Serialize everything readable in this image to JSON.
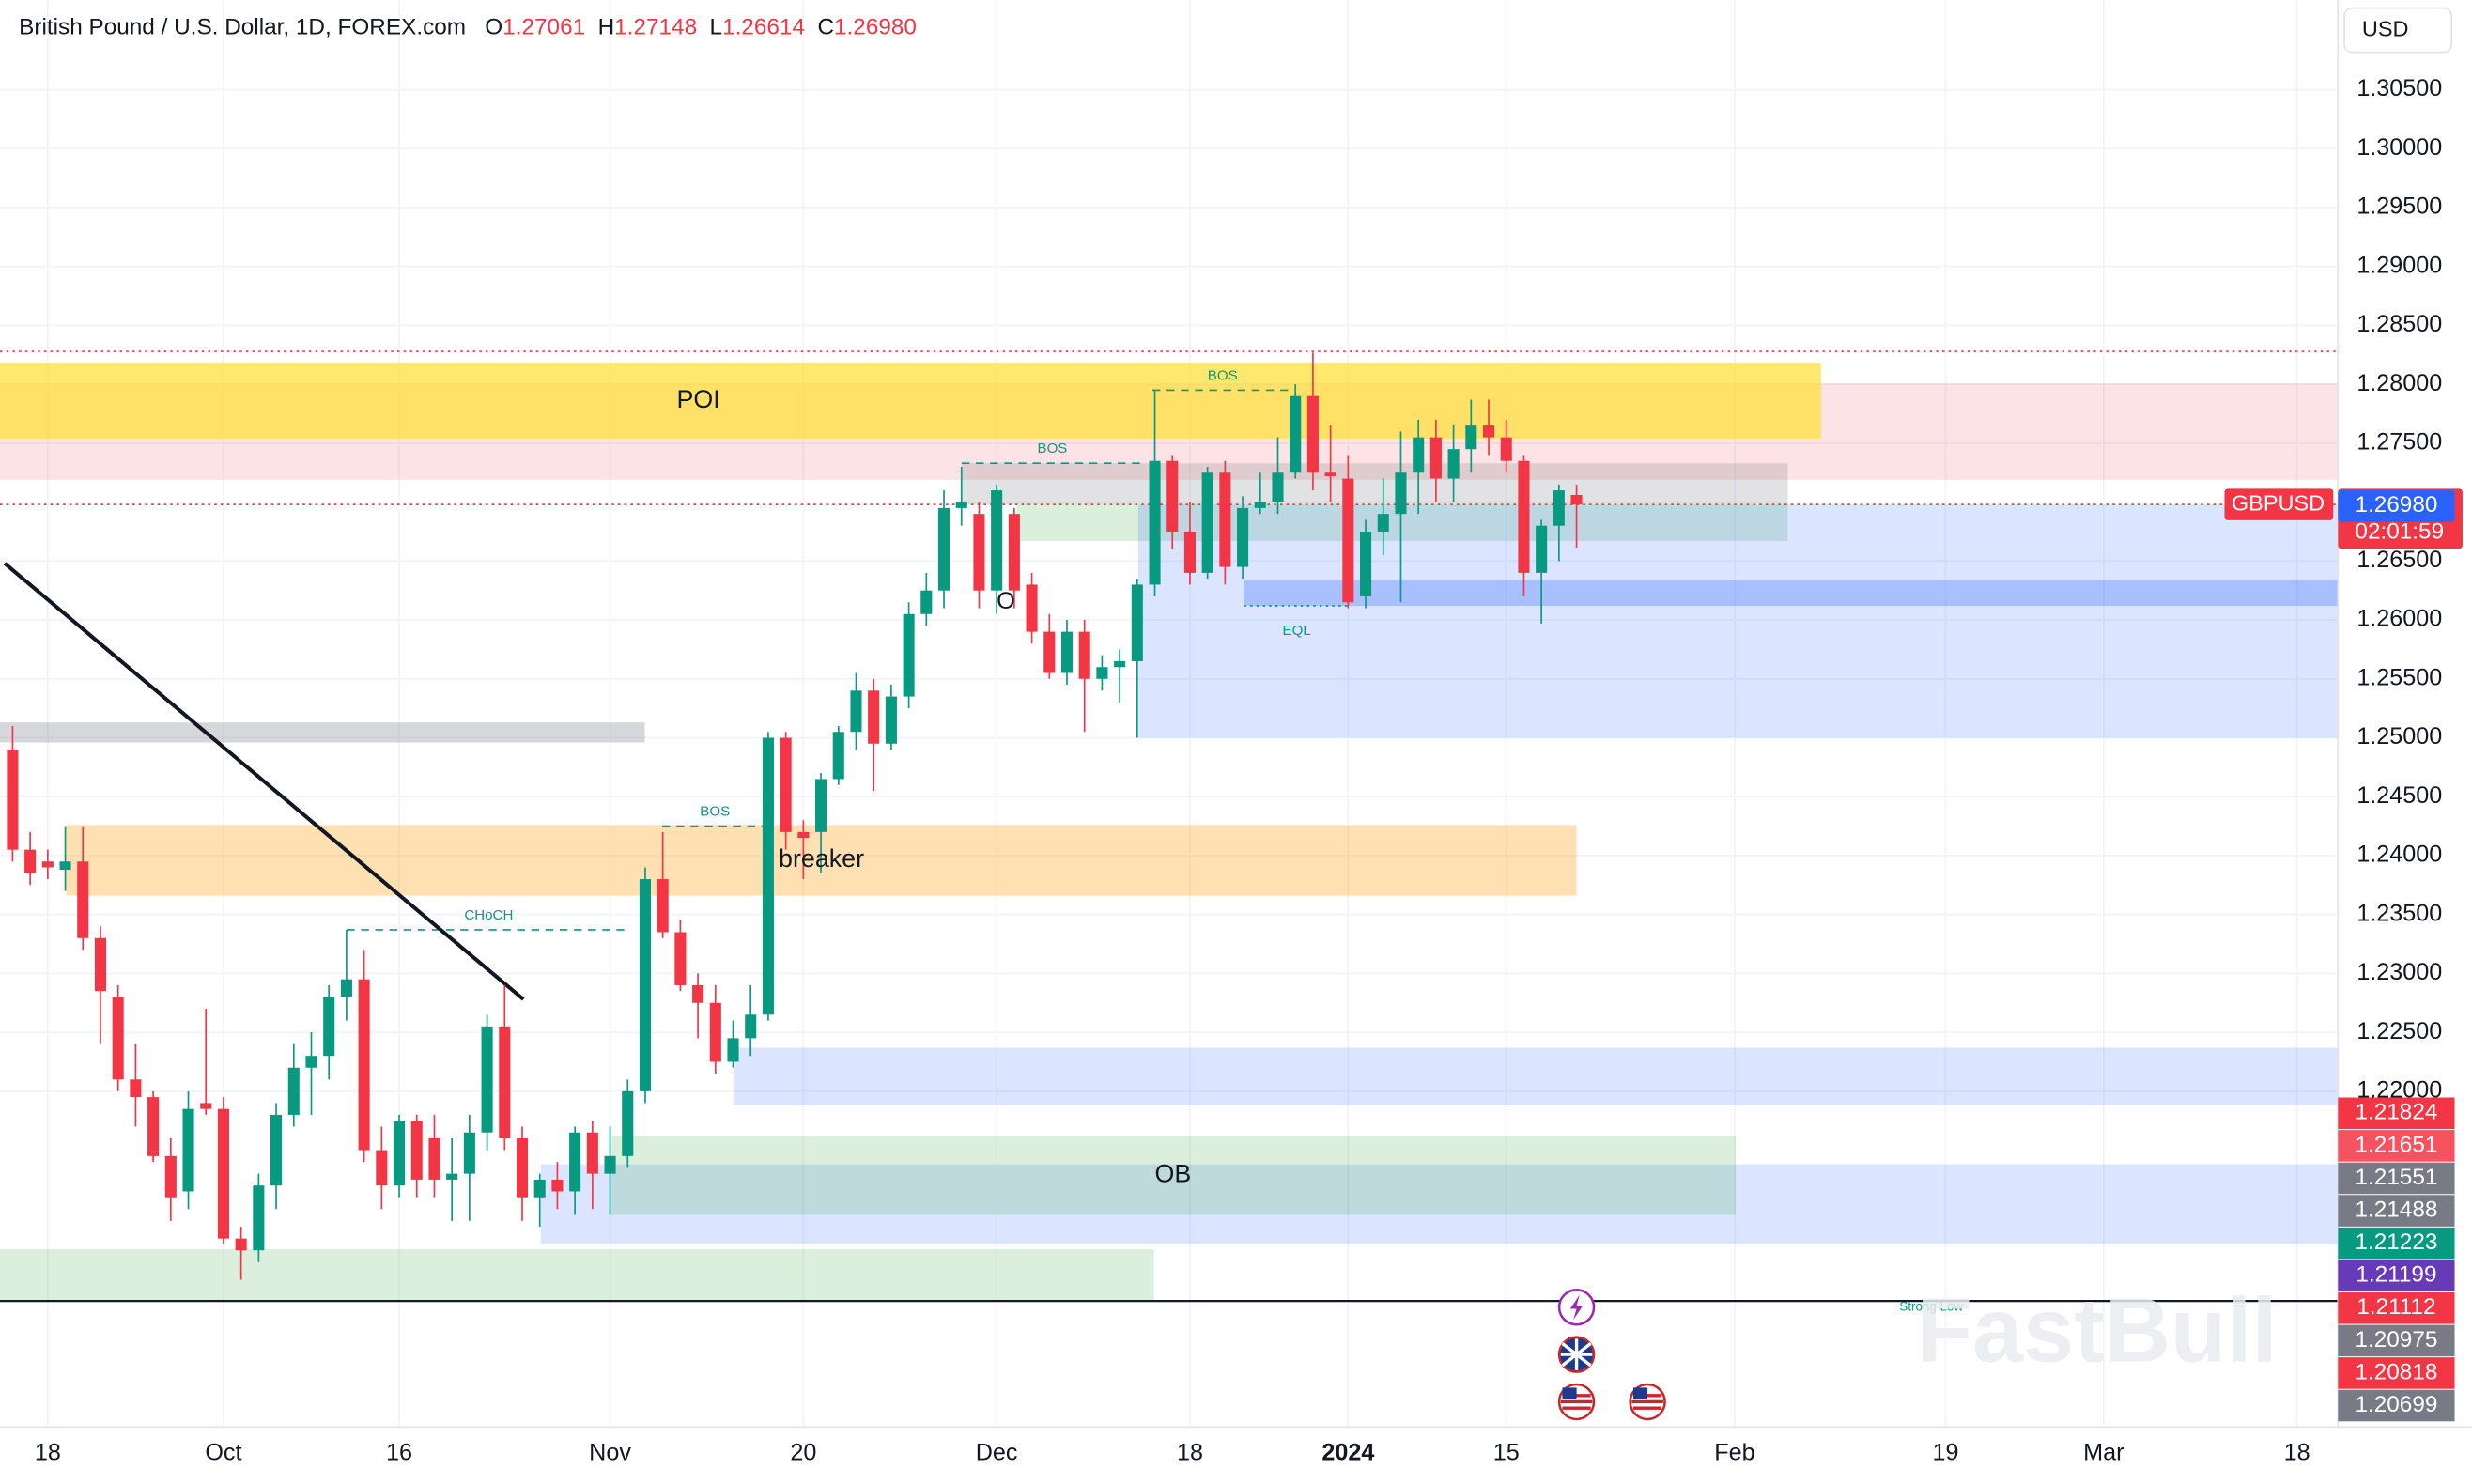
{
  "chart_data": {
    "type": "candlestick",
    "title": "British Pound / U.S. Dollar, 1D, FOREX.com",
    "ohlc_header": [
      {
        "key": "O",
        "value": "1.27061"
      },
      {
        "key": "H",
        "value": "1.27148"
      },
      {
        "key": "L",
        "value": "1.26614"
      },
      {
        "key": "C",
        "value": "1.26980"
      }
    ],
    "currency": "USD",
    "categories": [
      null,
      null,
      "18",
      null,
      null,
      null,
      null,
      null,
      null,
      null,
      null,
      null,
      "Oct",
      null,
      null,
      null,
      null,
      null,
      null,
      null,
      null,
      null,
      "16",
      null,
      null,
      null,
      null,
      null,
      null,
      null,
      null,
      null,
      null,
      null,
      "Nov",
      null,
      null,
      null,
      null,
      null,
      null,
      null,
      null,
      null,
      null,
      "20",
      null,
      null,
      null,
      null,
      null,
      null,
      null,
      null,
      null,
      null,
      "Dec",
      null,
      null,
      null,
      null,
      null,
      null,
      null,
      null,
      null,
      null,
      "18",
      null,
      null,
      null,
      null,
      null,
      null,
      null,
      null,
      "2024",
      null,
      null,
      null,
      null,
      null,
      null,
      null,
      null,
      "15",
      null,
      null,
      null,
      null,
      null,
      null,
      null,
      null,
      null,
      null,
      null,
      null,
      "Feb",
      null,
      null,
      null,
      null,
      null,
      null,
      null,
      null,
      null,
      null,
      null,
      "19",
      null,
      null,
      null,
      null,
      null,
      null,
      null,
      null,
      "Mar",
      null,
      null,
      null,
      null,
      null,
      null,
      null,
      null,
      null,
      null,
      "18"
    ],
    "open": [
      1.249,
      1.2405,
      1.2395,
      1.2388,
      1.2395,
      1.233,
      1.228,
      1.221,
      1.2195,
      1.2145,
      1.2115,
      1.219,
      1.2185,
      1.2075,
      1.2065,
      1.212,
      1.218,
      1.222,
      1.223,
      1.228,
      1.2295,
      1.215,
      1.212,
      1.2175,
      1.216,
      1.2125,
      1.213,
      1.2165,
      1.2255,
      1.216,
      1.211,
      1.2125,
      1.2115,
      1.2165,
      1.213,
      1.2145,
      1.22,
      1.238,
      1.2335,
      1.229,
      1.2275,
      1.2225,
      1.2245,
      1.2265,
      1.25,
      1.242,
      1.242,
      1.2465,
      1.2505,
      1.254,
      1.2495,
      1.2535,
      1.2605,
      1.2625,
      1.2695,
      1.269,
      1.2625,
      1.269,
      1.263,
      1.259,
      1.2555,
      1.259,
      1.255,
      1.256,
      1.2565,
      1.263,
      1.2735,
      1.2675,
      1.264,
      1.2725,
      1.2645,
      1.2695,
      1.27,
      1.2725,
      1.279,
      1.2725,
      1.272,
      1.262,
      1.2675,
      1.269,
      1.2725,
      1.2755,
      1.272,
      1.2745,
      1.2765,
      1.2755,
      1.2735,
      1.264,
      1.268,
      1.27061,
      null,
      null,
      null,
      null,
      null,
      null,
      null,
      null,
      null,
      null,
      null,
      null,
      null,
      null,
      null,
      null,
      null,
      null,
      null,
      null,
      null,
      null,
      null,
      null,
      null,
      null,
      null,
      null,
      null,
      null,
      null,
      null,
      null,
      null,
      null,
      null,
      null,
      null,
      null,
      null,
      null
    ],
    "high": [
      1.251,
      1.242,
      1.2405,
      1.2425,
      1.2425,
      1.234,
      1.229,
      1.224,
      1.22,
      1.216,
      1.22,
      1.227,
      1.2195,
      1.2085,
      1.213,
      1.219,
      1.224,
      1.225,
      1.229,
      1.2337,
      1.232,
      1.217,
      1.218,
      1.218,
      1.218,
      1.216,
      1.218,
      1.2265,
      1.229,
      1.217,
      1.213,
      1.214,
      1.217,
      1.2175,
      1.217,
      1.221,
      1.239,
      1.242,
      1.2345,
      1.23,
      1.229,
      1.226,
      1.229,
      1.2505,
      1.2505,
      1.243,
      1.247,
      1.251,
      1.2555,
      1.255,
      1.2545,
      1.2615,
      1.264,
      1.271,
      1.273,
      1.27,
      1.2715,
      1.2695,
      1.264,
      1.2605,
      1.26,
      1.26,
      1.257,
      1.2575,
      1.2635,
      1.2795,
      1.274,
      1.27,
      1.273,
      1.2735,
      1.2705,
      1.2725,
      1.2755,
      1.28,
      1.2827,
      1.2765,
      1.274,
      1.2685,
      1.272,
      1.276,
      1.277,
      1.277,
      1.2765,
      1.2787,
      1.2787,
      1.277,
      1.274,
      1.2685,
      1.2715,
      1.27148,
      null,
      null,
      null,
      null,
      null,
      null,
      null,
      null,
      null,
      null,
      null,
      null,
      null,
      null,
      null,
      null,
      null,
      null,
      null,
      null,
      null,
      null,
      null,
      null,
      null,
      null,
      null,
      null,
      null,
      null,
      null,
      null,
      null,
      null,
      null,
      null,
      null,
      null,
      null,
      null,
      null
    ],
    "low": [
      1.2395,
      1.2375,
      1.238,
      1.237,
      1.232,
      1.224,
      1.22,
      1.217,
      1.214,
      1.209,
      1.21,
      1.218,
      1.207,
      1.204,
      1.2055,
      1.21,
      1.217,
      1.218,
      1.221,
      1.226,
      1.214,
      1.21,
      1.211,
      1.211,
      1.211,
      1.209,
      1.209,
      1.215,
      1.215,
      1.209,
      1.2085,
      1.21,
      1.2095,
      1.21,
      1.2095,
      1.2135,
      1.219,
      1.233,
      1.2285,
      1.2245,
      1.2215,
      1.222,
      1.223,
      1.226,
      1.2405,
      1.238,
      1.2385,
      1.246,
      1.249,
      1.2455,
      1.249,
      1.2525,
      1.2595,
      1.261,
      1.268,
      1.261,
      1.2605,
      1.261,
      1.258,
      1.255,
      1.2545,
      1.2505,
      1.254,
      1.253,
      1.25,
      1.262,
      1.266,
      1.263,
      1.2635,
      1.263,
      1.2635,
      1.269,
      1.269,
      1.272,
      1.271,
      1.27,
      1.261,
      1.261,
      1.2655,
      1.2615,
      1.269,
      1.27,
      1.27,
      1.2725,
      1.274,
      1.2725,
      1.262,
      1.2597,
      1.265,
      1.26614,
      null,
      null,
      null,
      null,
      null,
      null,
      null,
      null,
      null,
      null,
      null,
      null,
      null,
      null,
      null,
      null,
      null,
      null,
      null,
      null,
      null,
      null,
      null,
      null,
      null,
      null,
      null,
      null,
      null,
      null,
      null,
      null,
      null,
      null,
      null,
      null,
      null,
      null,
      null,
      null,
      null
    ],
    "close": [
      1.2405,
      1.2385,
      1.239,
      1.2395,
      1.233,
      1.2285,
      1.221,
      1.2195,
      1.2145,
      1.211,
      1.2185,
      1.2185,
      1.2075,
      1.2065,
      1.212,
      1.218,
      1.222,
      1.223,
      1.228,
      1.2295,
      1.215,
      1.212,
      1.2175,
      1.2125,
      1.2125,
      1.213,
      1.2165,
      1.2255,
      1.216,
      1.211,
      1.2125,
      1.2115,
      1.2165,
      1.213,
      1.2145,
      1.22,
      1.238,
      1.2335,
      1.229,
      1.2275,
      1.2225,
      1.2245,
      1.2265,
      1.25,
      1.242,
      1.2415,
      1.2465,
      1.2505,
      1.254,
      1.2495,
      1.2535,
      1.2605,
      1.2625,
      1.2695,
      1.27,
      1.2625,
      1.271,
      1.2625,
      1.259,
      1.2555,
      1.259,
      1.255,
      1.256,
      1.2565,
      1.263,
      1.2735,
      1.2675,
      1.264,
      1.2725,
      1.2645,
      1.2695,
      1.27,
      1.2725,
      1.279,
      1.2725,
      1.2722,
      1.2615,
      1.2675,
      1.269,
      1.2725,
      1.2755,
      1.272,
      1.2745,
      1.2765,
      1.2755,
      1.2735,
      1.264,
      1.268,
      1.271,
      1.2698,
      null,
      null,
      null,
      null,
      null,
      null,
      null,
      null,
      null,
      null,
      null,
      null,
      null,
      null,
      null,
      null,
      null,
      null,
      null,
      null,
      null,
      null,
      null,
      null,
      null,
      null,
      null,
      null,
      null,
      null,
      null,
      null,
      null,
      null,
      null,
      null,
      null,
      null,
      null,
      null,
      null
    ],
    "up_color": "#089981",
    "down_color": "#f23645",
    "ylim": [
      1.1915,
      1.3126
    ],
    "yticks": [
      {
        "value": 1.22,
        "label": "1.22000"
      },
      {
        "value": 1.225,
        "label": "1.22500"
      },
      {
        "value": 1.23,
        "label": "1.23000"
      },
      {
        "value": 1.235,
        "label": "1.23500"
      },
      {
        "value": 1.24,
        "label": "1.24000"
      },
      {
        "value": 1.245,
        "label": "1.24500"
      },
      {
        "value": 1.25,
        "label": "1.25000"
      },
      {
        "value": 1.255,
        "label": "1.25500"
      },
      {
        "value": 1.26,
        "label": "1.26000"
      },
      {
        "value": 1.265,
        "label": "1.26500"
      },
      {
        "value": 1.27,
        "label": "1.27000"
      },
      {
        "value": 1.275,
        "label": "1.27500"
      },
      {
        "value": 1.28,
        "label": "1.28000"
      },
      {
        "value": 1.285,
        "label": "1.28500"
      },
      {
        "value": 1.29,
        "label": "1.29000"
      },
      {
        "value": 1.295,
        "label": "1.29500"
      },
      {
        "value": 1.3,
        "label": "1.30000"
      },
      {
        "value": 1.305,
        "label": "1.30500"
      }
    ],
    "grid": true,
    "zones": [
      {
        "range": [
          1.2719,
          1.2801
        ],
        "color": "rgba(242,54,69,0.14)"
      },
      {
        "range": [
          1.2754,
          1.2818
        ],
        "color": "rgba(255,224,60,0.75)",
        "label": "POI"
      },
      {
        "range": [
          1.2698,
          1.2733
        ],
        "color": "rgba(120,123,134,0.22)"
      },
      {
        "range": [
          1.2667,
          1.2698
        ],
        "color": "rgba(76,175,80,0.2)"
      },
      {
        "range": [
          1.25,
          1.2698
        ],
        "color": "rgba(41,98,255,0.17)"
      },
      {
        "range": [
          1.2612,
          1.2634
        ],
        "color": "rgba(41,98,255,0.28)"
      },
      {
        "range": [
          1.2496,
          1.2513
        ],
        "color": "rgba(120,123,134,0.3)"
      },
      {
        "range": [
          1.2366,
          1.2426
        ],
        "color": "rgba(255,152,0,0.3)",
        "label": "breaker"
      },
      {
        "range": [
          1.2188,
          1.2237
        ],
        "color": "rgba(41,98,255,0.17)"
      },
      {
        "range": [
          1.207,
          1.2138
        ],
        "color": "rgba(41,98,255,0.17)"
      },
      {
        "range": [
          1.2095,
          1.2162
        ],
        "color": "rgba(76,175,80,0.2)",
        "label": "OB"
      },
      {
        "range": [
          1.2022,
          1.2066
        ],
        "color": "rgba(76,175,80,0.2)"
      }
    ],
    "levels": [
      {
        "price": 1.2337,
        "label": "CHoCH",
        "color": "#089981",
        "style": "dashed"
      },
      {
        "price": 1.2425,
        "label": "BOS",
        "color": "#089981",
        "style": "dashed"
      },
      {
        "price": 1.2733,
        "label": "BOS",
        "color": "#089981",
        "style": "dashed"
      },
      {
        "price": 1.2795,
        "label": "BOS",
        "color": "#089981",
        "style": "dashed"
      },
      {
        "price": 1.2612,
        "label": "EQL",
        "color": "#089981",
        "style": "dotted"
      },
      {
        "price": 1.2828,
        "color": "#f23645",
        "style": "dotted"
      },
      {
        "price": 1.2698,
        "color": "#f23645",
        "style": "dotted"
      },
      {
        "price": 1.2022,
        "color": "#131722",
        "style": "solid"
      }
    ],
    "trendline": {
      "from": 1.2648,
      "to": 1.2278,
      "color": "#131722"
    },
    "notes": [
      "O",
      "Strong Low"
    ],
    "last_price": {
      "symbol": "GBPUSD",
      "value": 1.2698,
      "label": "1.26980",
      "countdown": "02:01:59",
      "color": "#f23645"
    },
    "bid_tag": {
      "value": 1.2698,
      "label": "1.26980",
      "color": "#2962ff"
    },
    "price_tags": [
      {
        "value": 1.21824,
        "color": "#f23645"
      },
      {
        "value": 1.21651,
        "color": "#f7525f"
      },
      {
        "value": 1.21551,
        "color": "#787b86"
      },
      {
        "value": 1.21488,
        "color": "#787b86"
      },
      {
        "value": 1.21223,
        "color": "#089981"
      },
      {
        "value": 1.21199,
        "color": "#673ab7"
      },
      {
        "value": 1.21112,
        "color": "#f23645"
      },
      {
        "value": 1.20975,
        "color": "#787b86"
      },
      {
        "value": 1.20818,
        "color": "#f23645"
      },
      {
        "value": 1.20699,
        "color": "#787b86"
      }
    ],
    "watermark": "FastBull"
  }
}
